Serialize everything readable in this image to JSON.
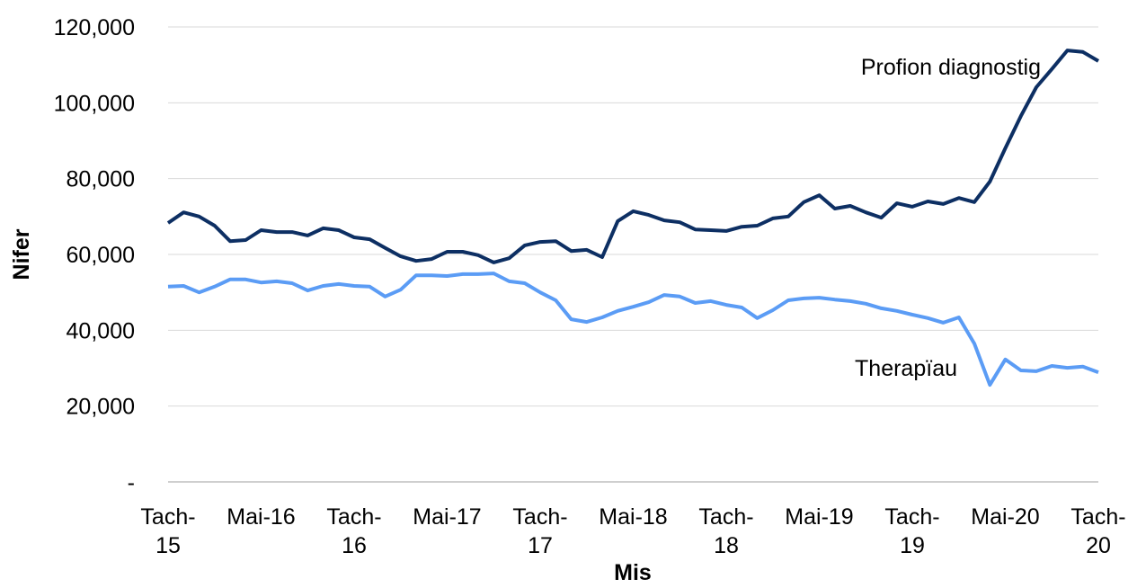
{
  "chart_data": {
    "type": "line",
    "x_label": "Mis",
    "y_label": "Nifer",
    "categories": [
      "Tach-15",
      null,
      null,
      null,
      null,
      null,
      "Mai-16",
      null,
      null,
      null,
      null,
      null,
      "Tach-16",
      null,
      null,
      null,
      null,
      null,
      "Mai-17",
      null,
      null,
      null,
      null,
      null,
      "Tach-17",
      null,
      null,
      null,
      null,
      null,
      "Mai-18",
      null,
      null,
      null,
      null,
      null,
      "Tach-18",
      null,
      null,
      null,
      null,
      null,
      "Mai-19",
      null,
      null,
      null,
      null,
      null,
      "Tach-19",
      null,
      null,
      null,
      null,
      null,
      "Mai-20",
      null,
      null,
      null,
      null,
      null,
      "Tach-20"
    ],
    "series": [
      {
        "name": "Profion diagnostig",
        "color": "#0d2f63",
        "values": [
          68300,
          71100,
          70000,
          67600,
          63500,
          63800,
          66400,
          65900,
          65900,
          65000,
          66900,
          66400,
          64500,
          64000,
          61700,
          59500,
          58300,
          58800,
          60700,
          60700,
          59800,
          57900,
          59000,
          62400,
          63300,
          63500,
          60900,
          61200,
          59300,
          68800,
          71400,
          70400,
          69000,
          68500,
          66600,
          66400,
          66200,
          67300,
          67600,
          69500,
          70000,
          73800,
          75600,
          72100,
          72800,
          71100,
          69700,
          73500,
          72600,
          74000,
          73300,
          74900,
          73800,
          79200,
          88000,
          96500,
          104100,
          108900,
          113800,
          113400,
          111000
        ]
      },
      {
        "name": "Therapïau",
        "color": "#5b9cf5",
        "values": [
          51500,
          51700,
          50000,
          51500,
          53400,
          53400,
          52600,
          52900,
          52400,
          50500,
          51700,
          52200,
          51700,
          51500,
          48900,
          50700,
          54500,
          54500,
          54300,
          54800,
          54800,
          55000,
          52900,
          52400,
          50000,
          47900,
          42900,
          42200,
          43400,
          45100,
          46200,
          47400,
          49300,
          48900,
          47200,
          47700,
          46700,
          46000,
          43200,
          45300,
          47900,
          48400,
          48600,
          48100,
          47700,
          47000,
          45800,
          45100,
          44100,
          43200,
          42000,
          43400,
          36500,
          25600,
          32300,
          29400,
          29200,
          30600,
          30100,
          30400,
          28900
        ]
      }
    ],
    "ylim": [
      0,
      120000
    ],
    "yticks": [
      {
        "value": 0,
        "label": "-"
      },
      {
        "value": 20000,
        "label": "20,000"
      },
      {
        "value": 40000,
        "label": "40,000"
      },
      {
        "value": 60000,
        "label": "60,000"
      },
      {
        "value": 80000,
        "label": "80,000"
      },
      {
        "value": 100000,
        "label": "100,000"
      },
      {
        "value": 120000,
        "label": "120,000"
      }
    ],
    "grid": true
  }
}
